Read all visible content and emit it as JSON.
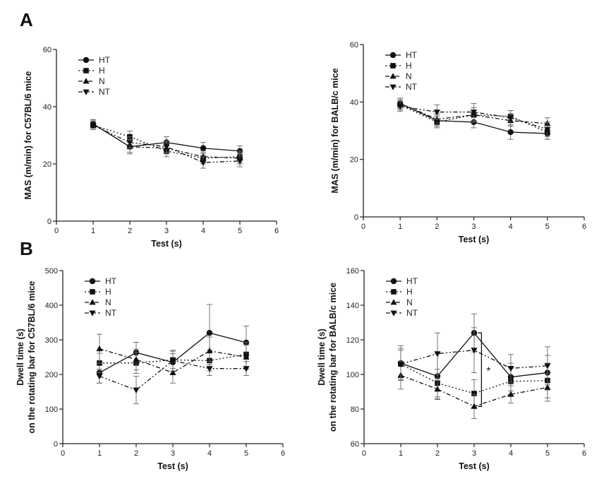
{
  "panel_labels": {
    "a": "A",
    "b": "B"
  },
  "chart_data": [
    {
      "type": "line",
      "panel": "A",
      "xlabel": "Test (s)",
      "ylabel": "MAS (m/min) for C57BL/6 mice",
      "xlim": [
        0,
        6
      ],
      "ylim": [
        0,
        60
      ],
      "x_ticks": [
        0,
        1,
        2,
        3,
        4,
        5,
        6
      ],
      "y_ticks": [
        0,
        20,
        40,
        60
      ],
      "x": [
        1,
        2,
        3,
        4,
        5
      ],
      "legend_position": "top-left",
      "series": [
        {
          "name": "HT",
          "values": [
            34,
            26,
            27.5,
            25.5,
            24.5
          ],
          "error": [
            1.5,
            2.5,
            2,
            2,
            1.8
          ]
        },
        {
          "name": "H",
          "values": [
            33.5,
            29.5,
            24.5,
            22,
            22.5
          ],
          "error": [
            1.5,
            2,
            2,
            2,
            2
          ]
        },
        {
          "name": "N",
          "values": [
            34,
            26,
            25.5,
            22.5,
            22
          ],
          "error": [
            1.5,
            2,
            2,
            2,
            2
          ]
        },
        {
          "name": "NT",
          "values": [
            33.5,
            27.5,
            26,
            20.5,
            21
          ],
          "error": [
            1.5,
            2,
            2,
            2,
            2
          ]
        }
      ]
    },
    {
      "type": "line",
      "panel": "A",
      "xlabel": "Test (s)",
      "ylabel": "MAS (m/min) for BALB/c mice",
      "xlim": [
        0,
        6
      ],
      "ylim": [
        0,
        60
      ],
      "x_ticks": [
        0,
        1,
        2,
        3,
        4,
        5,
        6
      ],
      "y_ticks": [
        0,
        20,
        40,
        60
      ],
      "x": [
        1,
        2,
        3,
        4,
        5
      ],
      "legend_position": "top-left",
      "series": [
        {
          "name": "HT",
          "values": [
            39.5,
            33.5,
            33,
            29.5,
            29
          ],
          "error": [
            1.8,
            2,
            2,
            2.5,
            2
          ]
        },
        {
          "name": "H",
          "values": [
            39,
            33,
            35.5,
            35,
            29.5
          ],
          "error": [
            1.8,
            2,
            2.5,
            2,
            2.5
          ]
        },
        {
          "name": "N",
          "values": [
            39.5,
            34,
            35.5,
            33.5,
            32.5
          ],
          "error": [
            1.8,
            2,
            2.5,
            2,
            2
          ]
        },
        {
          "name": "NT",
          "values": [
            38.5,
            36.5,
            36.5,
            34.5,
            30.5
          ],
          "error": [
            1.8,
            2.5,
            3,
            2.5,
            2.5
          ]
        }
      ]
    },
    {
      "type": "line",
      "panel": "B",
      "xlabel": "Test (s)",
      "ylabel_lines": [
        "Dwell time (s)",
        "on the rotating bar for C57BL/6 mice"
      ],
      "xlim": [
        0,
        6
      ],
      "ylim": [
        0,
        500
      ],
      "x_ticks": [
        0,
        1,
        2,
        3,
        4,
        5,
        6
      ],
      "y_ticks": [
        0,
        100,
        200,
        300,
        400,
        500
      ],
      "x": [
        1,
        2,
        3,
        4,
        5
      ],
      "legend_position": "top-left",
      "series": [
        {
          "name": "HT",
          "values": [
            205,
            263,
            235,
            320,
            292
          ],
          "error": [
            30,
            30,
            25,
            82,
            48
          ]
        },
        {
          "name": "H",
          "values": [
            233,
            233,
            242,
            240,
            258
          ],
          "error": [
            28,
            30,
            25,
            30,
            35
          ]
        },
        {
          "name": "N",
          "values": [
            274,
            243,
            205,
            268,
            250
          ],
          "error": [
            42,
            30,
            30,
            40,
            35
          ]
        },
        {
          "name": "NT",
          "values": [
            195,
            155,
            240,
            217,
            217
          ],
          "error": [
            20,
            40,
            30,
            20,
            20
          ]
        }
      ]
    },
    {
      "type": "line",
      "panel": "B",
      "xlabel": "Test (s)",
      "ylabel_lines": [
        "Dwell time (s)",
        "on the rotating bar for BALB/c mice"
      ],
      "xlim": [
        0,
        6
      ],
      "ylim": [
        60,
        160
      ],
      "x_ticks": [
        0,
        1,
        2,
        3,
        4,
        5,
        6
      ],
      "y_ticks": [
        60,
        80,
        100,
        120,
        140,
        160
      ],
      "x": [
        1,
        2,
        3,
        4,
        5
      ],
      "legend_position": "top-left",
      "annotation": {
        "text": "*",
        "bracket_x": 3.2,
        "y_range": [
          81.5,
          124
        ]
      },
      "series": [
        {
          "name": "HT",
          "values": [
            106.5,
            99,
            124,
            98.5,
            101
          ],
          "error": [
            10,
            13,
            11,
            8,
            10
          ]
        },
        {
          "name": "H",
          "values": [
            106,
            95,
            89,
            96,
            96.5
          ],
          "error": [
            8,
            8,
            8,
            8,
            10
          ]
        },
        {
          "name": "N",
          "values": [
            99.5,
            91.5,
            81.5,
            88.5,
            92.5
          ],
          "error": [
            8,
            6,
            7,
            5,
            8
          ]
        },
        {
          "name": "NT",
          "values": [
            106,
            112,
            114,
            103.5,
            105
          ],
          "error": [
            9,
            12,
            13,
            8,
            11
          ]
        }
      ]
    }
  ]
}
